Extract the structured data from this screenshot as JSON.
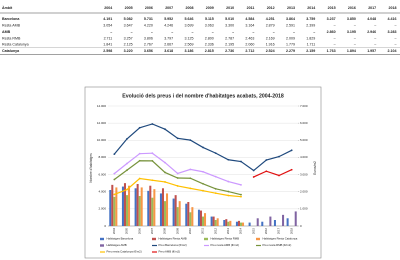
{
  "table": {
    "columns": [
      "Àmbit",
      "2004",
      "2005",
      "2006",
      "2007",
      "2008",
      "2009",
      "2010",
      "2011",
      "2012",
      "2013",
      "2014",
      "2015",
      "2016",
      "2017",
      "2018"
    ],
    "rows": [
      [
        "Barcelona",
        "4.191",
        "5.082",
        "5.731",
        "5.952",
        "5.646",
        "5.115",
        "5.010",
        "4.584",
        "4.251",
        "3.864",
        "3.759",
        "3.237",
        "3.850",
        "4.048",
        "4.416"
      ],
      [
        "Resta AMB",
        "3.054",
        "3.647",
        "4.220",
        "4.246",
        "3.699",
        "3.063",
        "3.300",
        "3.164",
        "2.879",
        "2.591",
        "2.399",
        "–",
        "–",
        "–",
        "–"
      ],
      [
        "AMB",
        "–",
        "–",
        "–",
        "–",
        "–",
        "–",
        "–",
        "–",
        "–",
        "–",
        "–",
        "2.860",
        "3.195",
        "2.946",
        "3.283"
      ],
      [
        "Resta RMB",
        "2.711",
        "3.257",
        "3.806",
        "3.797",
        "3.125",
        "2.800",
        "2.787",
        "2.463",
        "2.169",
        "2.009",
        "1.829",
        "–",
        "–",
        "–",
        "–"
      ],
      [
        "Resta Catalunya",
        "1.841",
        "2.125",
        "2.767",
        "2.667",
        "2.569",
        "2.336",
        "2.195",
        "2.060",
        "1.916",
        "1.779",
        "1.711",
        "–",
        "–",
        "–",
        "–"
      ],
      [
        "Catalunya",
        "2.598",
        "3.220",
        "3.656",
        "3.618",
        "3.186",
        "2.815",
        "2.736",
        "2.712",
        "2.524",
        "2.279",
        "2.159",
        "1.763",
        "1.894",
        "1.957",
        "2.104"
      ]
    ]
  },
  "chart_data": {
    "type": "combo",
    "title": "Evolució dels preus i del nombre d'habitatges acabats, 2004-2018",
    "y_label": "Nombre d'habitatges",
    "y2_label": "Euros/m2",
    "categories": [
      "2004",
      "2005",
      "2006",
      "2007",
      "2008",
      "2009",
      "2010",
      "2011",
      "2012",
      "2013",
      "2014",
      "2015",
      "2016",
      "2017",
      "2018"
    ],
    "ylim": [
      0,
      14000
    ],
    "yticks": [
      0,
      {
        "value": 2000,
        "label": "2.000"
      },
      {
        "value": 4000,
        "label": "4.000"
      },
      {
        "value": 6000,
        "label": "6.000"
      },
      {
        "value": 8000,
        "label": "8.000"
      },
      {
        "value": 10000,
        "label": "10.000"
      },
      {
        "value": 12000,
        "label": "12.000"
      },
      {
        "value": 14000,
        "label": "14.000"
      }
    ],
    "y2lim": [
      0,
      7000
    ],
    "y2ticks": [
      0,
      {
        "value": 1000,
        "label": "1.000"
      },
      {
        "value": 2000,
        "label": "2.000"
      },
      {
        "value": 3000,
        "label": "3.000"
      },
      {
        "value": 4000,
        "label": "4.000"
      },
      {
        "value": 5000,
        "label": "5.000"
      },
      {
        "value": 6000,
        "label": "6.000"
      },
      {
        "value": 7000,
        "label": "7.000"
      }
    ],
    "grid": true,
    "series": [
      {
        "name": "Habitatges Barcelona",
        "type": "bar",
        "color": "#4472c4",
        "values": [
          4200,
          4600,
          4400,
          4100,
          3800,
          3200,
          2600,
          1900,
          1100,
          700,
          500,
          400,
          500,
          700,
          900
        ]
      },
      {
        "name": "Habitatges Resta AMB",
        "type": "bar",
        "color": "#c0504d",
        "values": [
          4800,
          5000,
          4900,
          4700,
          4400,
          3600,
          2800,
          1800,
          1100,
          800,
          600,
          null,
          null,
          null,
          null
        ]
      },
      {
        "name": "Habitatges Resta RMB",
        "type": "bar",
        "color": "#9bbb59",
        "values": [
          3400,
          3600,
          3500,
          3300,
          2900,
          2200,
          1600,
          1100,
          700,
          500,
          400,
          null,
          null,
          null,
          null
        ]
      },
      {
        "name": "Habitatges Resta Catalunya",
        "type": "bar",
        "color": "#f79646",
        "values": [
          4500,
          4700,
          4500,
          4300,
          3800,
          2900,
          2200,
          1500,
          900,
          600,
          400,
          null,
          null,
          null,
          null
        ]
      },
      {
        "name": "Habitatges AMB",
        "type": "bar",
        "color": "#8064a2",
        "values": [
          null,
          null,
          null,
          null,
          null,
          null,
          null,
          null,
          null,
          null,
          null,
          900,
          1100,
          1300,
          1700
        ]
      },
      {
        "name": "Preu Barcelona (€/m2)",
        "type": "line",
        "axis": "y2",
        "color": "#1f497d",
        "values": [
          4191,
          5082,
          5731,
          5952,
          5646,
          5115,
          5010,
          4584,
          4251,
          3864,
          3759,
          3237,
          3850,
          4048,
          4416
        ]
      },
      {
        "name": "Preu resta AMB (€/m2)",
        "type": "line",
        "axis": "y2",
        "color": "#cc99ff",
        "values": [
          3054,
          3647,
          4220,
          4246,
          3699,
          3063,
          3300,
          3164,
          2879,
          2591,
          2399,
          null,
          null,
          null,
          null
        ]
      },
      {
        "name": "Preu resta RMB (€/m2)",
        "type": "line",
        "axis": "y2",
        "color": "#77933c",
        "values": [
          2711,
          3257,
          3806,
          3797,
          3125,
          2800,
          2787,
          2463,
          2169,
          2009,
          1829,
          null,
          null,
          null,
          null
        ]
      },
      {
        "name": "Preu resta Catalunya (€/m2)",
        "type": "line",
        "axis": "y2",
        "color": "#ffc000",
        "values": [
          1841,
          2125,
          2767,
          2667,
          2569,
          2336,
          2195,
          2060,
          1916,
          1779,
          1711,
          null,
          null,
          null,
          null
        ]
      },
      {
        "name": "Preu AMB (€/m2)",
        "type": "line",
        "axis": "y2",
        "color": "#e01010",
        "values": [
          null,
          null,
          null,
          null,
          null,
          null,
          null,
          null,
          null,
          null,
          null,
          2860,
          3195,
          2946,
          3283
        ]
      }
    ]
  }
}
